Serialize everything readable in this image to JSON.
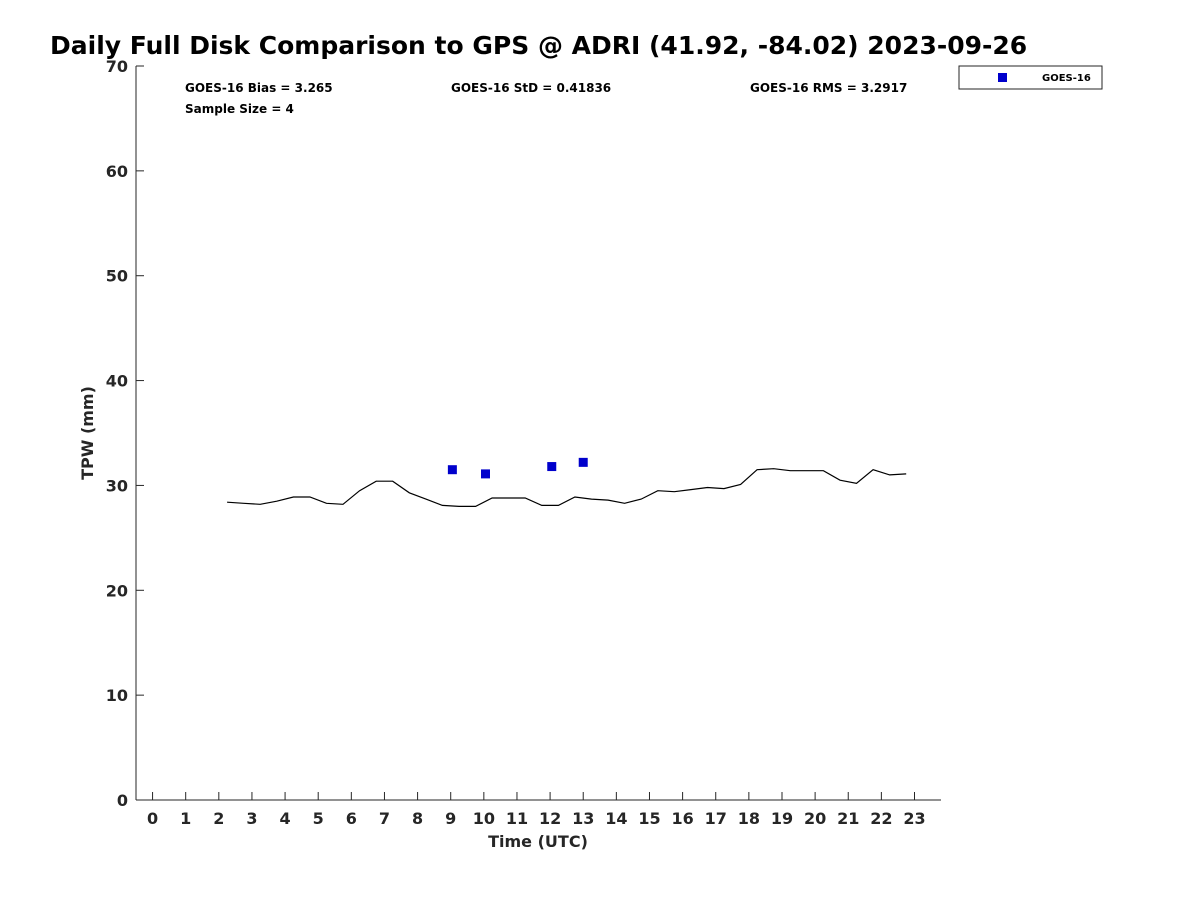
{
  "chart_data": {
    "type": "scatter",
    "title": "Daily Full Disk Comparison to GPS @ ADRI (41.92, -84.02) 2023-09-26",
    "xlabel": "Time (UTC)",
    "ylabel": "TPW (mm)",
    "xlim": [
      -0.5,
      23.8
    ],
    "ylim": [
      0,
      70
    ],
    "xticks": [
      "0",
      "1",
      "2",
      "3",
      "4",
      "5",
      "6",
      "7",
      "8",
      "9",
      "10",
      "11",
      "12",
      "13",
      "14",
      "15",
      "16",
      "17",
      "18",
      "19",
      "20",
      "21",
      "22",
      "23"
    ],
    "yticks": [
      "0",
      "10",
      "20",
      "30",
      "40",
      "50",
      "60",
      "70"
    ],
    "grid": false,
    "legend_position": "outside-top-right",
    "stats": {
      "bias": "GOES-16 Bias = 3.265",
      "std": "GOES-16 StD = 0.41836",
      "rms": "GOES-16 RMS = 3.2917",
      "sample": "Sample Size = 4"
    },
    "series": [
      {
        "kind": "line",
        "color": "#000000",
        "x": [
          2.25,
          2.75,
          3.25,
          3.75,
          4.25,
          4.75,
          5.25,
          5.75,
          6.25,
          6.75,
          7.25,
          7.75,
          8.25,
          8.75,
          9.25,
          9.75,
          10.25,
          10.75,
          11.25,
          11.75,
          12.25,
          12.75,
          13.25,
          13.75,
          14.25,
          14.75,
          15.25,
          15.75,
          16.25,
          16.75,
          17.25,
          17.75,
          18.25,
          18.75,
          19.25,
          19.75,
          20.25,
          20.75,
          21.25,
          21.75,
          22.25,
          22.75
        ],
        "y": [
          28.4,
          28.3,
          28.2,
          28.5,
          28.9,
          28.9,
          28.3,
          28.2,
          29.5,
          30.4,
          30.4,
          29.3,
          28.7,
          28.1,
          28.0,
          28.0,
          28.8,
          28.8,
          28.8,
          28.1,
          28.1,
          28.9,
          28.7,
          28.6,
          28.3,
          28.7,
          29.5,
          29.4,
          29.6,
          29.8,
          29.7,
          30.1,
          31.5,
          31.6,
          31.4,
          31.4,
          31.4,
          30.5,
          30.2,
          31.5,
          31.0,
          31.1
        ]
      },
      {
        "name": "GOES-16",
        "kind": "scatter",
        "color": "#0000cc",
        "x": [
          9.05,
          10.05,
          12.05,
          13.0
        ],
        "y": [
          31.5,
          31.1,
          31.8,
          32.2
        ]
      }
    ]
  }
}
